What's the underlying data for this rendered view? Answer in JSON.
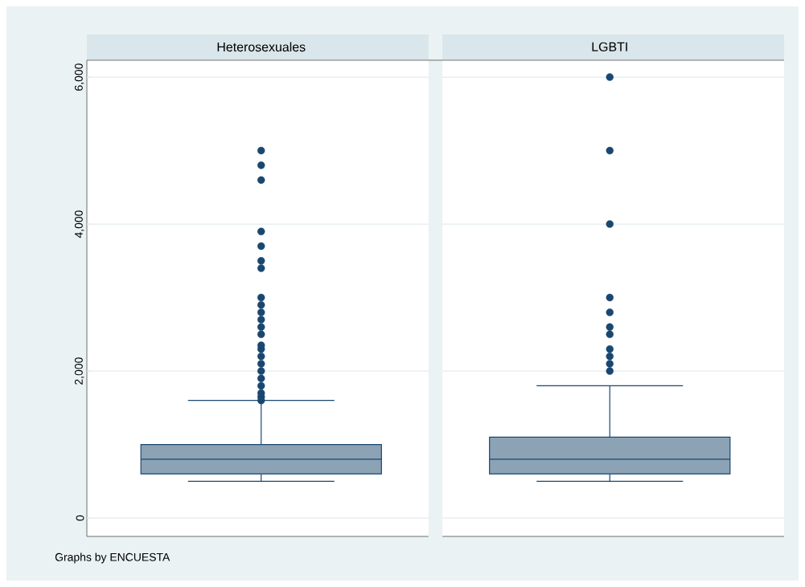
{
  "chart_data": {
    "type": "box",
    "categories": [
      "Heterosexuales",
      "LGBTI"
    ],
    "color": "#8ca3b5",
    "boxes": [
      {
        "low": 500,
        "q1": 600,
        "median": 800,
        "q3": 1000,
        "high": 1600,
        "outliers": [
          1600,
          1650,
          1700,
          1800,
          1900,
          2000,
          2100,
          2200,
          2300,
          2350,
          2500,
          2600,
          2700,
          2800,
          2900,
          3000,
          3400,
          3500,
          3700,
          3900,
          4600,
          4800,
          5000
        ]
      },
      {
        "low": 500,
        "q1": 600,
        "median": 800,
        "q3": 1100,
        "high": 1800,
        "outliers": [
          2000,
          2100,
          2200,
          2300,
          2500,
          2600,
          2800,
          3000,
          4000,
          5000,
          6000
        ]
      }
    ],
    "ylim": [
      -250,
      6230
    ],
    "yticks": [
      {
        "value": 0,
        "label": "0"
      },
      {
        "value": 2000,
        "label": "2,000"
      },
      {
        "value": 4000,
        "label": "4,000"
      },
      {
        "value": 6000,
        "label": "6,000"
      }
    ],
    "grid": "y",
    "marker": "circle",
    "annotations": [
      "Graphs by ENCUESTA"
    ]
  }
}
